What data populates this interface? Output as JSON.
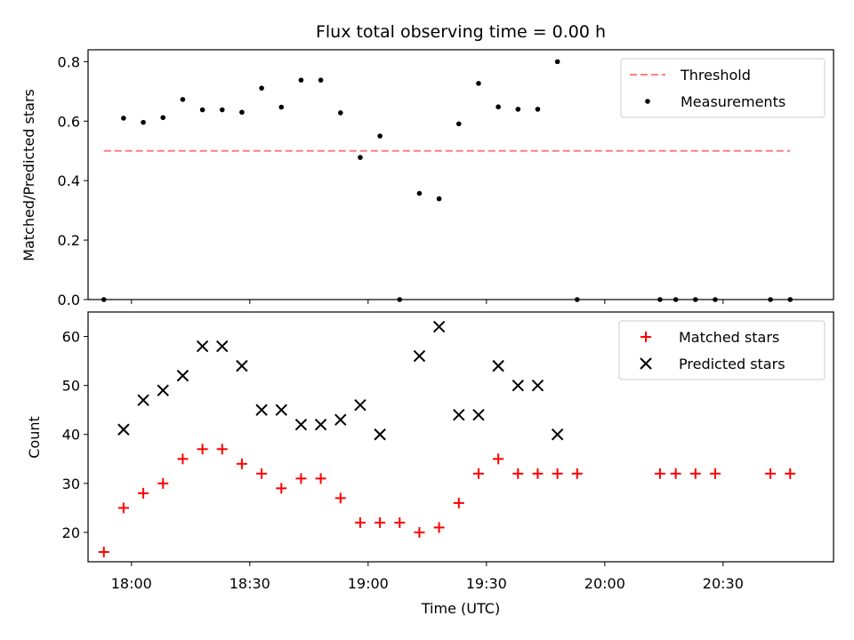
{
  "chart_data": [
    {
      "type": "scatter",
      "title": "Flux total observing time = 0.00 h",
      "xlabel": "",
      "ylabel": "Matched/Predicted stars",
      "xlim": [
        "17:49",
        "20:58"
      ],
      "ylim": [
        0,
        0.84
      ],
      "yticks": [
        0.0,
        0.2,
        0.4,
        0.6,
        0.8
      ],
      "ytick_labels": [
        "0.0",
        "0.2",
        "0.4",
        "0.6",
        "0.8"
      ],
      "xticks": [
        "18:00",
        "18:30",
        "19:00",
        "19:30",
        "20:00",
        "20:30"
      ],
      "legend": {
        "position": "top-right"
      },
      "series": [
        {
          "name": "Threshold",
          "style": "dashed-line",
          "color": "#ff7f7f",
          "x": [
            "17:53",
            "20:47"
          ],
          "y": [
            0.5,
            0.5
          ]
        },
        {
          "name": "Measurements",
          "style": "dot",
          "color": "#000000",
          "x": [
            "17:53",
            "17:58",
            "18:03",
            "18:08",
            "18:13",
            "18:18",
            "18:23",
            "18:28",
            "18:33",
            "18:38",
            "18:43",
            "18:48",
            "18:53",
            "18:58",
            "19:03",
            "19:08",
            "19:13",
            "19:18",
            "19:23",
            "19:28",
            "19:33",
            "19:38",
            "19:43",
            "19:48",
            "19:53",
            "20:14",
            "20:18",
            "20:23",
            "20:28",
            "20:42",
            "20:47"
          ],
          "y": [
            0.0,
            0.61,
            0.596,
            0.612,
            0.673,
            0.638,
            0.638,
            0.63,
            0.711,
            0.647,
            0.738,
            0.738,
            0.628,
            0.478,
            0.55,
            0.0,
            0.357,
            0.339,
            0.591,
            0.727,
            0.648,
            0.64,
            0.64,
            0.8,
            0.0,
            0.0,
            0.0,
            0.0,
            0.0,
            0.0,
            0.0
          ]
        }
      ]
    },
    {
      "type": "scatter",
      "title": "",
      "xlabel": "Time (UTC)",
      "ylabel": "Count",
      "xlim": [
        "17:49",
        "20:58"
      ],
      "ylim": [
        14,
        65
      ],
      "yticks": [
        20,
        30,
        40,
        50,
        60
      ],
      "ytick_labels": [
        "20",
        "30",
        "40",
        "50",
        "60"
      ],
      "xticks": [
        "18:00",
        "18:30",
        "19:00",
        "19:30",
        "20:00",
        "20:30"
      ],
      "legend": {
        "position": "top-right"
      },
      "series": [
        {
          "name": "Matched stars",
          "style": "plus",
          "color": "#ff0000",
          "x": [
            "17:53",
            "17:58",
            "18:03",
            "18:08",
            "18:13",
            "18:18",
            "18:23",
            "18:28",
            "18:33",
            "18:38",
            "18:43",
            "18:48",
            "18:53",
            "18:58",
            "19:03",
            "19:08",
            "19:13",
            "19:18",
            "19:23",
            "19:28",
            "19:33",
            "19:38",
            "19:43",
            "19:48",
            "19:53",
            "20:14",
            "20:18",
            "20:23",
            "20:28",
            "20:42",
            "20:47"
          ],
          "y": [
            16,
            25,
            28,
            30,
            35,
            37,
            37,
            34,
            32,
            29,
            31,
            31,
            27,
            22,
            22,
            22,
            20,
            21,
            26,
            32,
            35,
            32,
            32,
            32,
            32,
            32,
            32,
            32,
            32,
            32,
            32
          ]
        },
        {
          "name": "Predicted stars",
          "style": "x",
          "color": "#000000",
          "x": [
            "17:58",
            "18:03",
            "18:08",
            "18:13",
            "18:18",
            "18:23",
            "18:28",
            "18:33",
            "18:38",
            "18:43",
            "18:48",
            "18:53",
            "18:58",
            "19:03",
            "19:13",
            "19:18",
            "19:23",
            "19:28",
            "19:33",
            "19:38",
            "19:43",
            "19:48"
          ],
          "y": [
            41,
            47,
            49,
            52,
            58,
            58,
            54,
            45,
            45,
            42,
            42,
            43,
            46,
            40,
            56,
            62,
            44,
            44,
            54,
            50,
            50,
            40
          ]
        }
      ]
    }
  ]
}
